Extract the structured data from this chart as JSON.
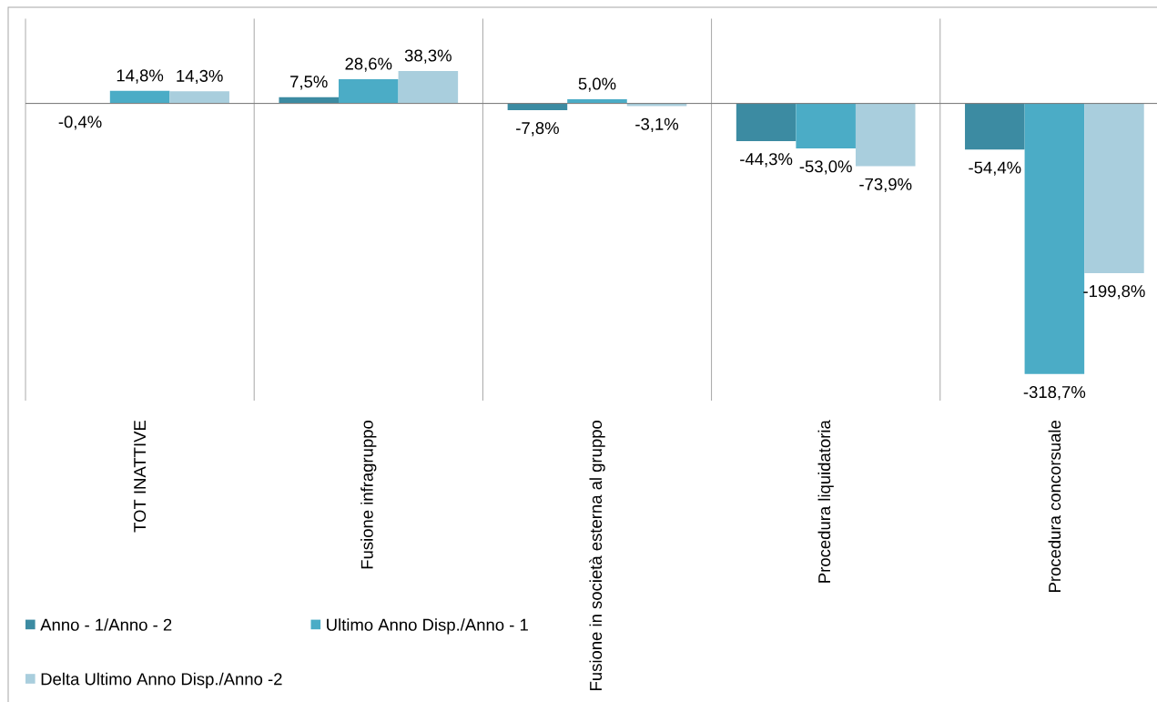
{
  "chart_data": {
    "type": "bar",
    "categories": [
      "TOT INATTIVE",
      "Fusione infragruppo",
      "Fusione in società esterna al gruppo",
      "Procedura liquidatoria",
      "Procedura concorsuale"
    ],
    "series": [
      {
        "name": "Anno - 1/Anno - 2",
        "color": "#3c8ba2",
        "values": [
          -0.4,
          7.5,
          -7.8,
          -44.3,
          -54.4
        ],
        "value_labels": [
          "-0,4%",
          "7,5%",
          "-7,8%",
          "-44,3%",
          "-54,4%"
        ]
      },
      {
        "name": "Ultimo Anno Disp./Anno - 1",
        "color": "#4bacc6",
        "values": [
          14.8,
          28.6,
          5.0,
          -53.0,
          -318.7
        ],
        "value_labels": [
          "14,8%",
          "28,6%",
          "5,0%",
          "-53,0%",
          "-318,7%"
        ]
      },
      {
        "name": "Delta Ultimo Anno Disp./Anno -2",
        "color": "#a9cedd",
        "values": [
          14.3,
          38.3,
          -3.1,
          -73.9,
          -199.8
        ],
        "value_labels": [
          "14,3%",
          "38,3%",
          "-3,1%",
          "-73,9%",
          "-199,8%"
        ]
      }
    ],
    "ylim": [
      -350,
      100
    ],
    "grid": "x",
    "legend": "bottom left"
  }
}
